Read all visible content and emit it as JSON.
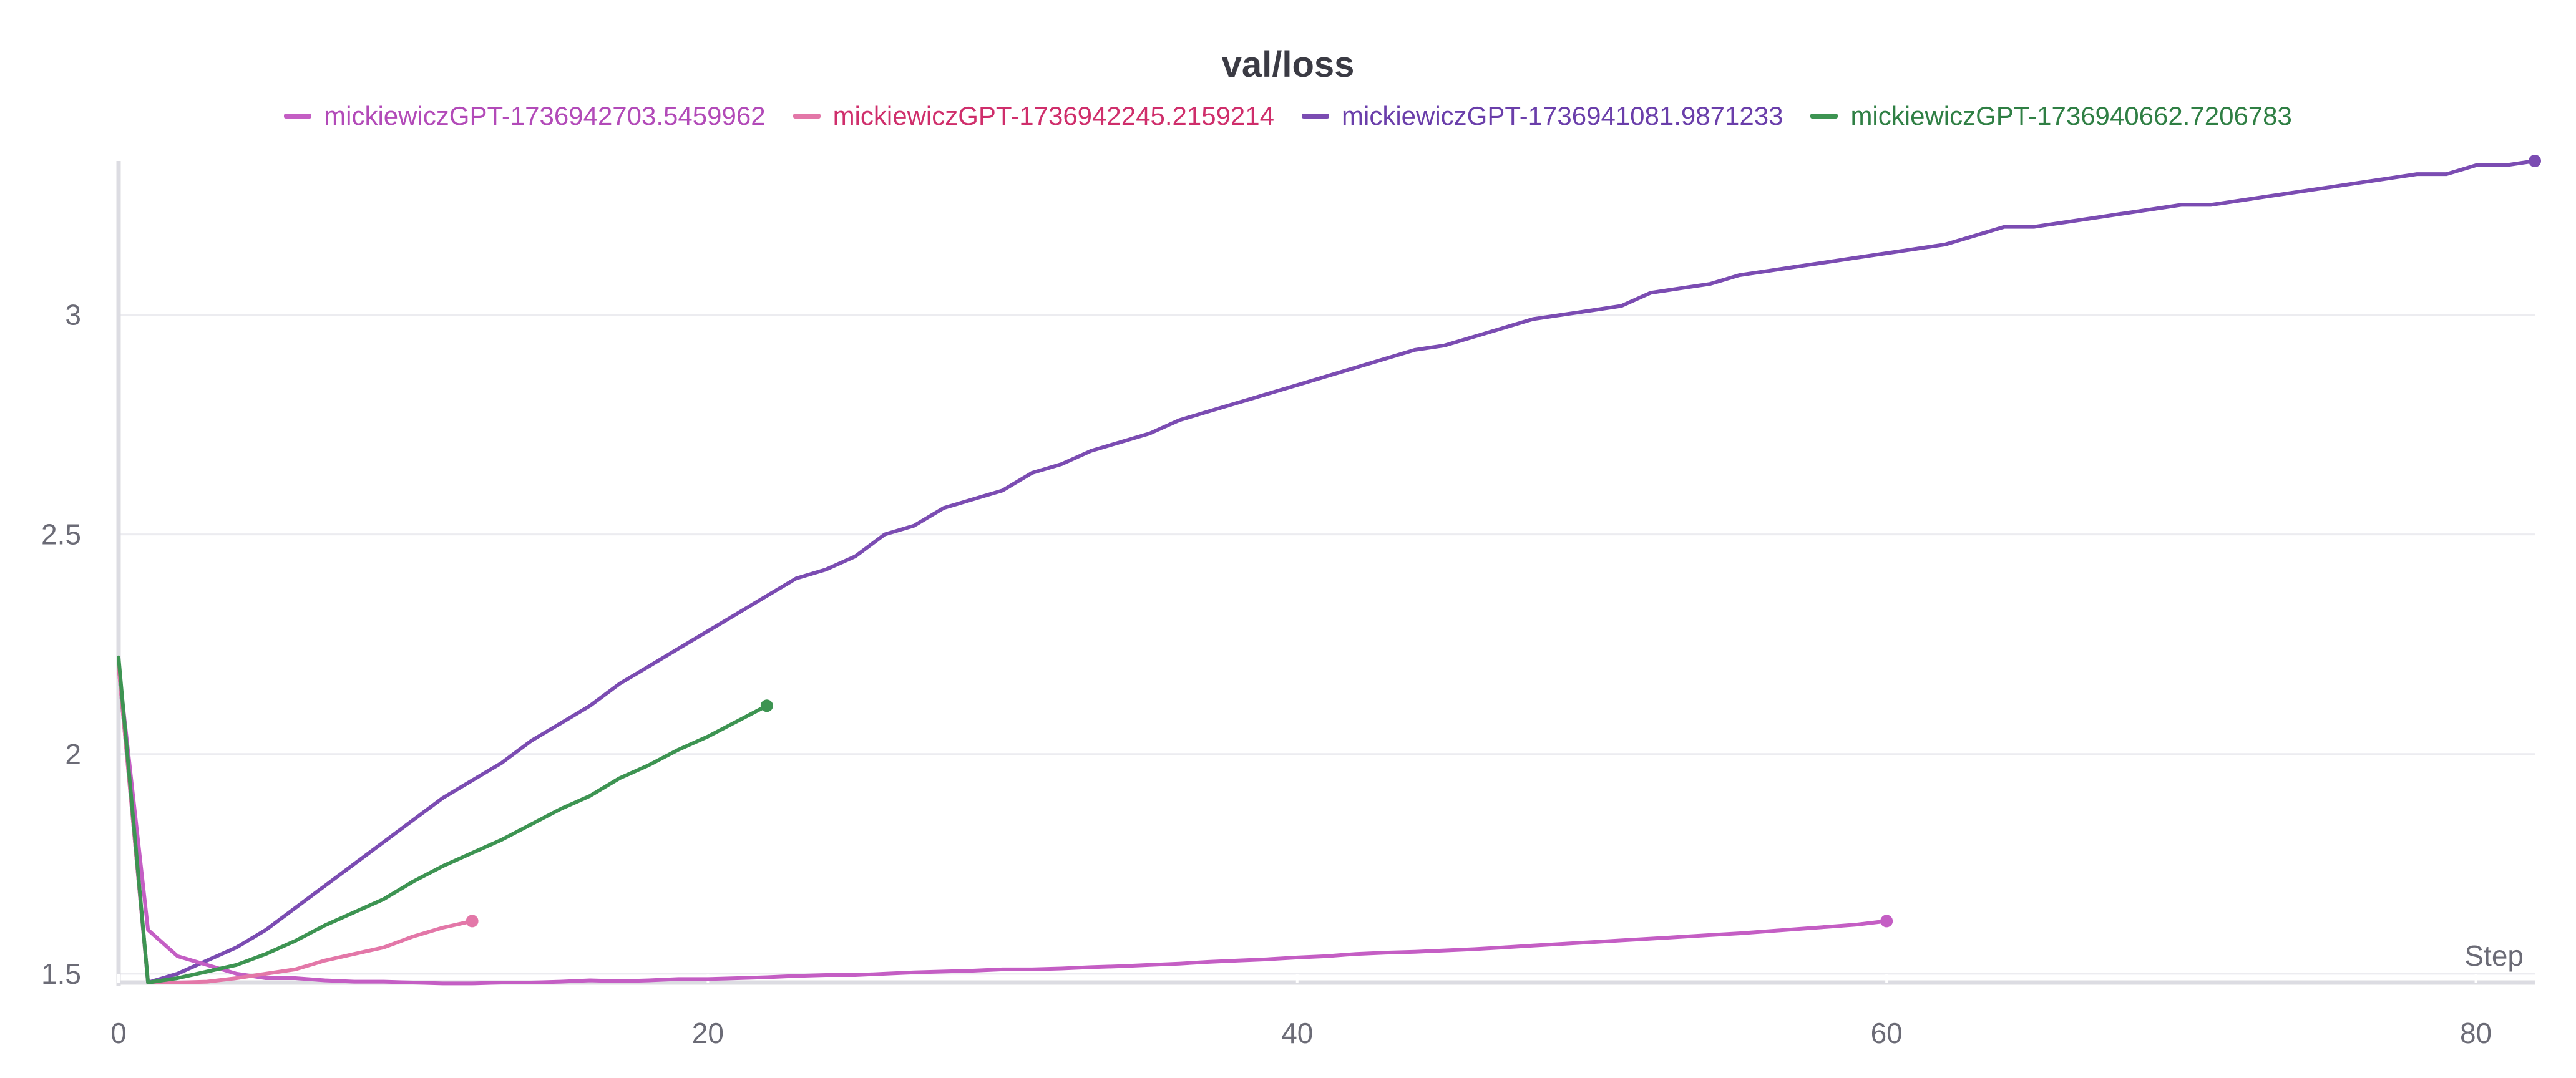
{
  "chart_data": {
    "type": "line",
    "title": "val/loss",
    "xlabel": "Step",
    "ylabel": "",
    "xlim": [
      0,
      82
    ],
    "ylim": [
      1.48,
      3.35
    ],
    "xticks": [
      0,
      20,
      40,
      60,
      80
    ],
    "yticks": [
      1.5,
      2,
      2.5,
      3
    ],
    "ytick_labels": [
      "1.5",
      "2",
      "2.5",
      "3"
    ],
    "xtick_labels": [
      "0",
      "20",
      "40",
      "60",
      "80"
    ],
    "grid": true,
    "legend_position": "top-center",
    "series": [
      {
        "name": "mickiewiczGPT-1736942703.5459962",
        "color": "#c45ec4",
        "label_color": "#b24ab8",
        "x": [
          0,
          1,
          2,
          3,
          4,
          5,
          6,
          7,
          8,
          9,
          10,
          11,
          12,
          13,
          14,
          15,
          16,
          17,
          18,
          19,
          20,
          21,
          22,
          23,
          24,
          25,
          26,
          27,
          28,
          29,
          30,
          31,
          32,
          33,
          34,
          35,
          36,
          37,
          38,
          39,
          40,
          41,
          42,
          43,
          44,
          45,
          46,
          47,
          48,
          49,
          50,
          51,
          52,
          53,
          54,
          55,
          56,
          57,
          58,
          59,
          60
        ],
        "y": [
          2.2,
          1.6,
          1.54,
          1.52,
          1.5,
          1.49,
          1.49,
          1.485,
          1.482,
          1.482,
          1.48,
          1.478,
          1.478,
          1.48,
          1.48,
          1.482,
          1.485,
          1.483,
          1.485,
          1.488,
          1.488,
          1.49,
          1.492,
          1.495,
          1.497,
          1.497,
          1.5,
          1.503,
          1.505,
          1.507,
          1.51,
          1.51,
          1.512,
          1.515,
          1.517,
          1.52,
          1.523,
          1.527,
          1.53,
          1.533,
          1.537,
          1.54,
          1.545,
          1.548,
          1.55,
          1.553,
          1.556,
          1.56,
          1.564,
          1.568,
          1.572,
          1.576,
          1.58,
          1.584,
          1.588,
          1.592,
          1.597,
          1.602,
          1.607,
          1.612,
          1.62
        ]
      },
      {
        "name": "mickiewiczGPT-1736942245.2159214",
        "color": "#e377a8",
        "label_color": "#cf2e6b",
        "x": [
          0,
          1,
          2,
          3,
          4,
          5,
          6,
          7,
          8,
          9,
          10,
          11,
          12
        ],
        "y": [
          2.2,
          1.48,
          1.48,
          1.482,
          1.49,
          1.5,
          1.51,
          1.53,
          1.545,
          1.56,
          1.585,
          1.605,
          1.62
        ]
      },
      {
        "name": "mickiewiczGPT-1736941081.9871233",
        "color": "#7b4cb2",
        "label_color": "#6a3eaa",
        "x": [
          0,
          1,
          2,
          3,
          4,
          5,
          6,
          7,
          8,
          9,
          10,
          11,
          12,
          13,
          14,
          15,
          16,
          17,
          18,
          19,
          20,
          21,
          22,
          23,
          24,
          25,
          26,
          27,
          28,
          29,
          30,
          31,
          32,
          33,
          34,
          35,
          36,
          37,
          38,
          39,
          40,
          41,
          42,
          43,
          44,
          45,
          46,
          47,
          48,
          49,
          50,
          51,
          52,
          53,
          54,
          55,
          56,
          57,
          58,
          59,
          60,
          61,
          62,
          63,
          64,
          65,
          66,
          67,
          68,
          69,
          70,
          71,
          72,
          73,
          74,
          75,
          76,
          77,
          78,
          79,
          80,
          81,
          82
        ],
        "y": [
          2.2,
          1.48,
          1.5,
          1.53,
          1.56,
          1.6,
          1.65,
          1.7,
          1.75,
          1.8,
          1.85,
          1.9,
          1.94,
          1.98,
          2.03,
          2.07,
          2.11,
          2.16,
          2.2,
          2.24,
          2.28,
          2.32,
          2.36,
          2.4,
          2.42,
          2.45,
          2.5,
          2.52,
          2.56,
          2.58,
          2.6,
          2.64,
          2.66,
          2.69,
          2.71,
          2.73,
          2.76,
          2.78,
          2.8,
          2.82,
          2.84,
          2.86,
          2.88,
          2.9,
          2.92,
          2.93,
          2.95,
          2.97,
          2.99,
          3.0,
          3.01,
          3.02,
          3.05,
          3.06,
          3.07,
          3.09,
          3.1,
          3.11,
          3.12,
          3.13,
          3.14,
          3.15,
          3.16,
          3.18,
          3.2,
          3.2,
          3.21,
          3.22,
          3.23,
          3.24,
          3.25,
          3.25,
          3.26,
          3.27,
          3.28,
          3.29,
          3.3,
          3.31,
          3.32,
          3.32,
          3.34,
          3.34,
          3.35
        ]
      },
      {
        "name": "mickiewiczGPT-1736940662.7206783",
        "color": "#3d9452",
        "label_color": "#2f7f44",
        "x": [
          0,
          1,
          2,
          3,
          4,
          5,
          6,
          7,
          8,
          9,
          10,
          11,
          12,
          13,
          14,
          15,
          16,
          17,
          18,
          19,
          20,
          21,
          22
        ],
        "y": [
          2.22,
          1.48,
          1.49,
          1.505,
          1.52,
          1.545,
          1.575,
          1.61,
          1.64,
          1.67,
          1.71,
          1.745,
          1.775,
          1.805,
          1.84,
          1.875,
          1.905,
          1.945,
          1.975,
          2.01,
          2.04,
          2.075,
          2.11
        ]
      }
    ]
  }
}
